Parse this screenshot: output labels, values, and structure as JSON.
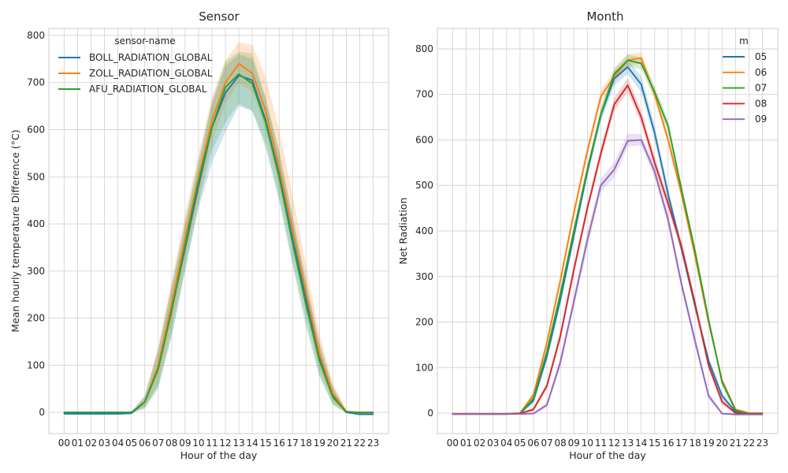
{
  "chart_data": [
    {
      "type": "line",
      "title": "Sensor",
      "xlabel": "Hour of the day",
      "ylabel": "Mean hourly temperature Difference (°C)",
      "ylim": [
        -45,
        815
      ],
      "yticks": [
        0,
        100,
        200,
        300,
        400,
        500,
        600,
        700,
        800
      ],
      "categories": [
        "00",
        "01",
        "02",
        "03",
        "04",
        "05",
        "06",
        "07",
        "08",
        "09",
        "10",
        "11",
        "12",
        "13",
        "14",
        "15",
        "16",
        "17",
        "18",
        "19",
        "20",
        "21",
        "22",
        "23"
      ],
      "grid": true,
      "legend": {
        "title": "sensor-name",
        "placement": "top-left"
      },
      "series": [
        {
          "name": "BOLL_RADIATION_GLOBAL",
          "color": "#1f77b4",
          "values": [
            -3,
            -3,
            -3,
            -3,
            -3,
            -2,
            22,
            95,
            218,
            348,
            480,
            605,
            678,
            715,
            705,
            620,
            505,
            370,
            240,
            115,
            35,
            0,
            -4,
            -4
          ],
          "ci_low": [
            -4,
            -4,
            -4,
            -4,
            -4,
            -3,
            10,
            55,
            165,
            300,
            432,
            530,
            595,
            650,
            640,
            570,
            455,
            320,
            195,
            80,
            18,
            -2,
            -5,
            -5
          ],
          "ci_high": [
            -2,
            -2,
            -2,
            -2,
            -2,
            -1,
            33,
            132,
            268,
            398,
            528,
            655,
            735,
            760,
            750,
            665,
            555,
            420,
            285,
            150,
            55,
            3,
            -3,
            -3
          ]
        },
        {
          "name": "ZOLL_RADIATION_GLOBAL",
          "color": "#ff7f0e",
          "values": [
            0,
            0,
            0,
            0,
            0,
            0,
            22,
            100,
            232,
            370,
            500,
            620,
            700,
            740,
            720,
            640,
            520,
            390,
            255,
            125,
            40,
            2,
            -1,
            -1
          ],
          "ci_low": [
            -1,
            -1,
            -1,
            -1,
            -1,
            -1,
            12,
            62,
            182,
            320,
            450,
            575,
            655,
            698,
            680,
            598,
            478,
            348,
            215,
            92,
            22,
            0,
            -2,
            -2
          ],
          "ci_high": [
            1,
            1,
            1,
            1,
            1,
            1,
            34,
            140,
            280,
            420,
            548,
            668,
            748,
            785,
            780,
            712,
            600,
            462,
            312,
            168,
            62,
            4,
            0,
            0
          ]
        },
        {
          "name": "AFU_RADIATION_GLOBAL",
          "color": "#2ca02c",
          "values": [
            0,
            0,
            0,
            0,
            0,
            0,
            22,
            92,
            215,
            355,
            490,
            605,
            690,
            718,
            698,
            615,
            500,
            360,
            228,
            110,
            32,
            1,
            0,
            0
          ],
          "ci_low": [
            -1,
            -1,
            -1,
            -1,
            -1,
            -1,
            8,
            50,
            160,
            300,
            440,
            555,
            615,
            655,
            640,
            560,
            448,
            310,
            180,
            75,
            15,
            -1,
            -1,
            -1
          ],
          "ci_high": [
            1,
            1,
            1,
            1,
            1,
            1,
            36,
            132,
            265,
            405,
            535,
            660,
            745,
            765,
            762,
            668,
            552,
            410,
            275,
            145,
            52,
            3,
            1,
            1
          ]
        }
      ]
    },
    {
      "type": "line",
      "title": "Month",
      "xlabel": "Hour of the day",
      "ylabel": "Net Radiation",
      "ylim": [
        -45,
        845
      ],
      "yticks": [
        0,
        100,
        200,
        300,
        400,
        500,
        600,
        700,
        800
      ],
      "categories": [
        "00",
        "01",
        "02",
        "03",
        "04",
        "05",
        "06",
        "07",
        "08",
        "09",
        "10",
        "11",
        "12",
        "13",
        "14",
        "15",
        "16",
        "17",
        "18",
        "19",
        "20",
        "21",
        "22",
        "23"
      ],
      "grid": true,
      "legend": {
        "title": "m",
        "placement": "top-right"
      },
      "series": [
        {
          "name": "05",
          "color": "#1f77b4",
          "values": [
            -2,
            -2,
            -2,
            -2,
            -2,
            -1,
            28,
            125,
            250,
            390,
            530,
            655,
            735,
            760,
            722,
            615,
            480,
            360,
            235,
            115,
            38,
            3,
            -2,
            -2
          ],
          "ci_low": [
            -3,
            -3,
            -3,
            -3,
            -3,
            -2,
            20,
            115,
            238,
            378,
            518,
            640,
            720,
            745,
            705,
            598,
            465,
            348,
            224,
            106,
            30,
            0,
            -3,
            -3
          ],
          "ci_high": [
            -1,
            -1,
            -1,
            -1,
            -1,
            0,
            36,
            135,
            262,
            402,
            542,
            670,
            750,
            775,
            740,
            632,
            495,
            372,
            246,
            124,
            46,
            6,
            -1,
            -1
          ]
        },
        {
          "name": "06",
          "color": "#ff7f0e",
          "values": [
            -1,
            -1,
            -1,
            -1,
            -1,
            0,
            40,
            155,
            292,
            440,
            575,
            695,
            740,
            775,
            780,
            700,
            600,
            480,
            345,
            200,
            72,
            8,
            0,
            0
          ],
          "ci_low": [
            -2,
            -2,
            -2,
            -2,
            -2,
            -1,
            32,
            145,
            280,
            428,
            563,
            682,
            726,
            762,
            768,
            688,
            588,
            468,
            334,
            190,
            64,
            5,
            -1,
            -1
          ],
          "ci_high": [
            0,
            0,
            0,
            0,
            0,
            1,
            48,
            165,
            304,
            452,
            587,
            708,
            754,
            788,
            792,
            712,
            612,
            492,
            356,
            210,
            80,
            11,
            1,
            1
          ]
        },
        {
          "name": "07",
          "color": "#2ca02c",
          "values": [
            -2,
            -2,
            -2,
            -2,
            -2,
            -1,
            32,
            135,
            262,
            400,
            535,
            655,
            745,
            775,
            768,
            705,
            630,
            490,
            355,
            205,
            68,
            6,
            -1,
            -1
          ],
          "ci_low": [
            -3,
            -3,
            -3,
            -3,
            -3,
            -2,
            24,
            125,
            250,
            388,
            523,
            642,
            732,
            762,
            755,
            692,
            617,
            478,
            344,
            195,
            60,
            3,
            -2,
            -2
          ],
          "ci_high": [
            -1,
            -1,
            -1,
            -1,
            -1,
            0,
            40,
            145,
            274,
            412,
            547,
            668,
            758,
            788,
            781,
            718,
            643,
            502,
            366,
            215,
            76,
            9,
            0,
            0
          ]
        },
        {
          "name": "08",
          "color": "#d62728",
          "values": [
            -2,
            -2,
            -2,
            -2,
            -2,
            -1,
            8,
            60,
            170,
            315,
            450,
            570,
            678,
            720,
            650,
            550,
            460,
            365,
            240,
            105,
            25,
            0,
            -2,
            -2
          ],
          "ci_low": [
            -3,
            -3,
            -3,
            -3,
            -3,
            -2,
            3,
            52,
            158,
            303,
            438,
            556,
            664,
            705,
            635,
            536,
            447,
            352,
            228,
            96,
            18,
            -2,
            -3,
            -3
          ],
          "ci_high": [
            -1,
            -1,
            -1,
            -1,
            -1,
            0,
            13,
            68,
            182,
            327,
            462,
            584,
            692,
            735,
            665,
            564,
            473,
            378,
            252,
            114,
            32,
            2,
            -1,
            -1
          ]
        },
        {
          "name": "09",
          "color": "#9467bd",
          "values": [
            -2,
            -2,
            -2,
            -2,
            -2,
            -2,
            -1,
            18,
            112,
            245,
            380,
            500,
            535,
            598,
            600,
            530,
            425,
            282,
            158,
            38,
            -1,
            -3,
            -3,
            -3
          ],
          "ci_low": [
            -3,
            -3,
            -3,
            -3,
            -3,
            -3,
            -2,
            12,
            100,
            230,
            362,
            485,
            518,
            585,
            588,
            516,
            410,
            270,
            146,
            30,
            -3,
            -4,
            -4,
            -4
          ],
          "ci_high": [
            -1,
            -1,
            -1,
            -1,
            -1,
            -1,
            0,
            24,
            124,
            260,
            398,
            515,
            552,
            614,
            612,
            544,
            440,
            294,
            170,
            46,
            1,
            -2,
            -2,
            -2
          ]
        }
      ]
    }
  ]
}
